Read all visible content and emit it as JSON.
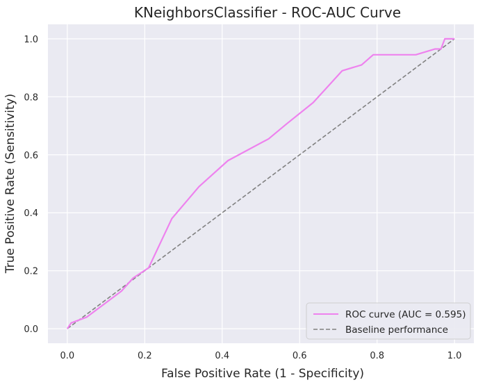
{
  "chart_data": {
    "type": "line",
    "title": "KNeighborsClassifier - ROC-AUC Curve",
    "xlabel": "False Positive Rate (1 - Specificity)",
    "ylabel": "True Positive Rate (Sensitivity)",
    "xlim": [
      -0.05,
      1.05
    ],
    "ylim": [
      -0.05,
      1.05
    ],
    "xticks": [
      "0.0",
      "0.2",
      "0.4",
      "0.6",
      "0.8",
      "1.0"
    ],
    "yticks": [
      "0.0",
      "0.2",
      "0.4",
      "0.6",
      "0.8",
      "1.0"
    ],
    "grid": true,
    "background": "#eaeaf2",
    "legend_position": "lower-right",
    "series": [
      {
        "name": "ROC curve (AUC = 0.595)",
        "color": "#ee82ee",
        "style": "solid",
        "x": [
          0.0,
          0.01,
          0.05,
          0.1,
          0.14,
          0.17,
          0.21,
          0.27,
          0.34,
          0.415,
          0.52,
          0.565,
          0.635,
          0.71,
          0.76,
          0.79,
          0.9,
          0.95,
          0.965,
          0.975,
          1.0
        ],
        "y": [
          0.0,
          0.02,
          0.04,
          0.09,
          0.13,
          0.175,
          0.21,
          0.38,
          0.49,
          0.58,
          0.655,
          0.705,
          0.78,
          0.89,
          0.91,
          0.945,
          0.945,
          0.965,
          0.965,
          1.0,
          1.0
        ]
      },
      {
        "name": "Baseline performance",
        "color": "#808080",
        "style": "dashed",
        "x": [
          0.0,
          1.0
        ],
        "y": [
          0.0,
          1.0
        ]
      }
    ]
  }
}
